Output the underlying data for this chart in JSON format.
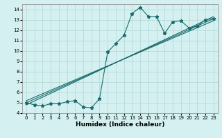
{
  "xlabel": "Humidex (Indice chaleur)",
  "ylabel": "",
  "bg_color": "#d4f0f0",
  "grid_color": "#b8dada",
  "line_color": "#1a6b6b",
  "xlim": [
    -0.5,
    23.5
  ],
  "ylim": [
    4,
    14.5
  ],
  "xticks": [
    0,
    1,
    2,
    3,
    4,
    5,
    6,
    7,
    8,
    9,
    10,
    11,
    12,
    13,
    14,
    15,
    16,
    17,
    18,
    19,
    20,
    21,
    22,
    23
  ],
  "yticks": [
    4,
    5,
    6,
    7,
    8,
    9,
    10,
    11,
    12,
    13,
    14
  ],
  "main_x": [
    0,
    1,
    2,
    3,
    4,
    5,
    6,
    7,
    8,
    9,
    10,
    11,
    12,
    13,
    14,
    15,
    16,
    17,
    18,
    19,
    20,
    21,
    22,
    23
  ],
  "main_y": [
    5.0,
    4.8,
    4.7,
    4.9,
    4.9,
    5.1,
    5.2,
    4.6,
    4.5,
    5.4,
    9.9,
    10.7,
    11.5,
    13.6,
    14.2,
    13.3,
    13.3,
    11.7,
    12.8,
    12.9,
    12.2,
    12.4,
    13.0,
    13.1
  ],
  "line1_x": [
    0,
    23
  ],
  "line1_y": [
    5.0,
    13.1
  ],
  "line2_x": [
    0,
    23
  ],
  "line2_y": [
    4.8,
    13.3
  ],
  "line3_x": [
    0,
    23
  ],
  "line3_y": [
    5.2,
    12.9
  ],
  "xlabel_fontsize": 6.5,
  "tick_fontsize": 5,
  "xlabel_fontweight": "bold"
}
